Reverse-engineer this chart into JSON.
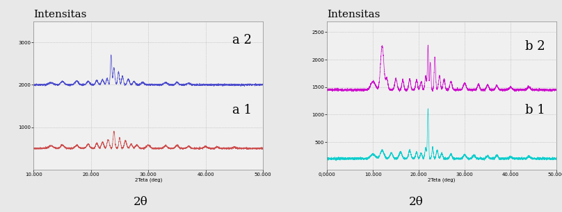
{
  "left_title": "Intensitas",
  "right_title": "Intensitas",
  "xlabel": "2θ",
  "xaxis_label": "2Teta (deg)",
  "left_xlim": [
    10000,
    50000
  ],
  "right_xlim": [
    0,
    50000
  ],
  "left_yticks": [
    1000,
    2000,
    3000
  ],
  "left_ylim": [
    0,
    3500
  ],
  "right_yticks": [
    500,
    1000,
    1500,
    2000,
    2500
  ],
  "right_ylim": [
    0,
    2700
  ],
  "left_xticks": [
    10000,
    20000,
    30000,
    40000,
    50000
  ],
  "left_xticklabels": [
    "10.000",
    "20.000",
    "30.000",
    "40.000",
    "50.000"
  ],
  "right_xticks": [
    0,
    10000,
    20000,
    30000,
    40000,
    50000
  ],
  "right_xticklabels": [
    "0,0000",
    "10.000",
    "20.000",
    "30.000",
    "40.000",
    "50.000"
  ],
  "color_a1": "#cc4444",
  "color_a2": "#4444cc",
  "color_b1": "#00cccc",
  "color_b2": "#cc00cc",
  "label_a1": "a 1",
  "label_a2": "a 2",
  "label_b1": "b 1",
  "label_b2": "b 2",
  "bg_color": "#f0f0f0",
  "plot_bg": "#f0f0f0",
  "grid_color": "#999999",
  "a1_baseline": 500,
  "a2_baseline": 2000,
  "b1_baseline": 200,
  "b2_baseline": 1450,
  "title_fontsize": 11,
  "tick_fontsize": 5,
  "label_fontsize": 13
}
